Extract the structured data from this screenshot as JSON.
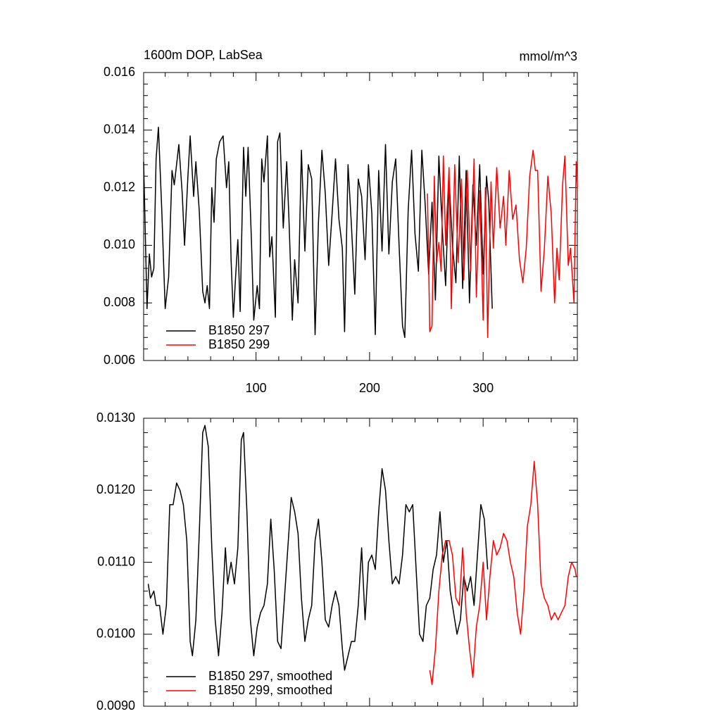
{
  "chart_data": [
    {
      "type": "line",
      "title": "1600m DOP, LabSea",
      "subtitle": "mmol/m^3",
      "legend": "lower left",
      "xlim": [
        1,
        383
      ],
      "xticks": [
        100,
        200,
        300
      ],
      "ylim": [
        0.006,
        0.016
      ],
      "yticks": [
        {
          "value": 0.006,
          "label": "0.006"
        },
        {
          "value": 0.008,
          "label": "0.008"
        },
        {
          "value": 0.01,
          "label": "0.010"
        },
        {
          "value": 0.012,
          "label": "0.012"
        },
        {
          "value": 0.014,
          "label": "0.014"
        },
        {
          "value": 0.016,
          "label": "0.016"
        }
      ],
      "series": [
        {
          "name": "B1850 297",
          "color": "#000000",
          "x": [
            1,
            4,
            6,
            8,
            10,
            12,
            14,
            17,
            20,
            23,
            26,
            28,
            32,
            35,
            37,
            40,
            42,
            45,
            47,
            50,
            53,
            55,
            57,
            59,
            61,
            63,
            65,
            68,
            71,
            74,
            76,
            78,
            80,
            82,
            84,
            86,
            89,
            91,
            93,
            96,
            98,
            101,
            103,
            105,
            107,
            110,
            112,
            114,
            117,
            119,
            121,
            124,
            127,
            129,
            132,
            134,
            137,
            140,
            143,
            146,
            149,
            152,
            155,
            158,
            161,
            164,
            167,
            170,
            173,
            176,
            178,
            181,
            184,
            187,
            190,
            193,
            196,
            199,
            202,
            205,
            208,
            211,
            214,
            217,
            220,
            223,
            226,
            229,
            231,
            234,
            237,
            240,
            243,
            246,
            249,
            252,
            255,
            258,
            261,
            264,
            267,
            270,
            273,
            276,
            279,
            282,
            285,
            288,
            291,
            294,
            297,
            300,
            303,
            305,
            308
          ],
          "values": [
            0.0129,
            0.0078,
            0.0097,
            0.0089,
            0.0092,
            0.013,
            0.0141,
            0.0112,
            0.0078,
            0.0089,
            0.0126,
            0.0121,
            0.0135,
            0.0118,
            0.01,
            0.0124,
            0.0138,
            0.0117,
            0.0129,
            0.0112,
            0.0084,
            0.008,
            0.0086,
            0.0078,
            0.012,
            0.0108,
            0.013,
            0.0136,
            0.0138,
            0.012,
            0.0129,
            0.0095,
            0.0075,
            0.0089,
            0.0102,
            0.0077,
            0.0134,
            0.0117,
            0.0134,
            0.0101,
            0.0074,
            0.0086,
            0.0078,
            0.013,
            0.0122,
            0.0138,
            0.0096,
            0.0103,
            0.0075,
            0.0136,
            0.0139,
            0.0106,
            0.0129,
            0.0109,
            0.0074,
            0.0095,
            0.008,
            0.0133,
            0.0098,
            0.0128,
            0.0123,
            0.0069,
            0.0108,
            0.0133,
            0.0118,
            0.0093,
            0.0111,
            0.013,
            0.0109,
            0.0099,
            0.007,
            0.0128,
            0.0107,
            0.0083,
            0.0123,
            0.0117,
            0.0095,
            0.0128,
            0.0111,
            0.0069,
            0.0126,
            0.0098,
            0.0135,
            0.0097,
            0.0122,
            0.013,
            0.01,
            0.0072,
            0.0068,
            0.0112,
            0.0133,
            0.0104,
            0.0091,
            0.0133,
            0.0114,
            0.009,
            0.0115,
            0.0081,
            0.0131,
            0.0106,
            0.0086,
            0.0123,
            0.01,
            0.0087,
            0.0131,
            0.0085,
            0.0126,
            0.008,
            0.0121,
            0.01,
            0.0128,
            0.009,
            0.0124,
            0.0115,
            0.0078
          ]
        },
        {
          "name": "B1850 299",
          "color": "#ff0000",
          "x": [
            251,
            253,
            255,
            257,
            259,
            261,
            263,
            265,
            267,
            270,
            272,
            275,
            278,
            281,
            283,
            286,
            289,
            292,
            294,
            297,
            300,
            302,
            304,
            307,
            309,
            312,
            315,
            318,
            320,
            323,
            326,
            329,
            332,
            335,
            338,
            341,
            344,
            346,
            348,
            351,
            354,
            357,
            360,
            363,
            365,
            367,
            370,
            372,
            375,
            377,
            380,
            382,
            383
          ],
          "values": [
            0.0118,
            0.007,
            0.0072,
            0.0124,
            0.0094,
            0.0101,
            0.0091,
            0.0131,
            0.01,
            0.0127,
            0.0078,
            0.0128,
            0.0094,
            0.0123,
            0.0088,
            0.0126,
            0.0091,
            0.013,
            0.0082,
            0.0119,
            0.0074,
            0.012,
            0.0068,
            0.0122,
            0.0099,
            0.0127,
            0.0106,
            0.0117,
            0.01,
            0.0126,
            0.0109,
            0.0114,
            0.0095,
            0.0087,
            0.0099,
            0.0124,
            0.0133,
            0.0126,
            0.0126,
            0.0084,
            0.0099,
            0.0124,
            0.0111,
            0.008,
            0.0099,
            0.0088,
            0.0121,
            0.0131,
            0.0093,
            0.0099,
            0.008,
            0.0129,
            0.012
          ]
        }
      ]
    },
    {
      "type": "line",
      "legend": "lower left",
      "xlim": [
        1,
        383
      ],
      "xticks": [
        100,
        200,
        300
      ],
      "ylim": [
        0.009,
        0.013
      ],
      "yticks": [
        {
          "value": 0.009,
          "label": "0.0090"
        },
        {
          "value": 0.01,
          "label": "0.0100"
        },
        {
          "value": 0.011,
          "label": "0.0110"
        },
        {
          "value": 0.012,
          "label": "0.0120"
        },
        {
          "value": 0.013,
          "label": "0.0130"
        }
      ],
      "series": [
        {
          "name": "B1850 297, smoothed",
          "color": "#000000",
          "x": [
            5,
            7,
            10,
            12,
            15,
            18,
            21,
            24,
            27,
            30,
            33,
            36,
            39,
            42,
            44,
            47,
            50,
            53,
            55,
            58,
            61,
            64,
            67,
            70,
            73,
            75,
            78,
            81,
            84,
            87,
            89,
            92,
            95,
            98,
            101,
            104,
            107,
            110,
            113,
            116,
            119,
            122,
            125,
            128,
            131,
            134,
            137,
            140,
            143,
            146,
            149,
            152,
            155,
            158,
            161,
            164,
            167,
            170,
            173,
            176,
            178,
            181,
            184,
            187,
            190,
            193,
            196,
            199,
            202,
            205,
            208,
            211,
            214,
            217,
            220,
            223,
            226,
            229,
            232,
            235,
            238,
            241,
            244,
            247,
            250,
            253,
            256,
            259,
            262,
            265,
            268,
            271,
            274,
            277,
            280,
            283,
            286,
            289,
            292,
            295,
            298,
            301,
            304
          ],
          "values": [
            0.0107,
            0.0105,
            0.0106,
            0.0104,
            0.0104,
            0.01,
            0.0104,
            0.0118,
            0.0118,
            0.0121,
            0.012,
            0.0118,
            0.0113,
            0.0099,
            0.0097,
            0.0102,
            0.0114,
            0.0128,
            0.0129,
            0.0126,
            0.0112,
            0.0102,
            0.0097,
            0.0103,
            0.0112,
            0.0107,
            0.011,
            0.0107,
            0.0112,
            0.0127,
            0.0128,
            0.0117,
            0.0102,
            0.0097,
            0.0101,
            0.0103,
            0.0104,
            0.0107,
            0.0116,
            0.0109,
            0.0099,
            0.0098,
            0.0105,
            0.0112,
            0.0119,
            0.0117,
            0.0114,
            0.0105,
            0.0099,
            0.0102,
            0.0104,
            0.0113,
            0.0116,
            0.011,
            0.0102,
            0.0101,
            0.0104,
            0.0106,
            0.0104,
            0.0098,
            0.0095,
            0.0097,
            0.0099,
            0.0099,
            0.0104,
            0.0112,
            0.0102,
            0.011,
            0.0111,
            0.0109,
            0.0117,
            0.0123,
            0.012,
            0.0113,
            0.0107,
            0.0108,
            0.0107,
            0.0111,
            0.0118,
            0.0117,
            0.0118,
            0.0109,
            0.01,
            0.0099,
            0.0104,
            0.0105,
            0.0109,
            0.0111,
            0.0117,
            0.011,
            0.0113,
            0.0106,
            0.0103,
            0.01,
            0.0102,
            0.0108,
            0.0106,
            0.0108,
            0.0104,
            0.0111,
            0.0118,
            0.0116,
            0.0109
          ]
        },
        {
          "name": "B1850 299, smoothed",
          "color": "#ff0000",
          "x": [
            253,
            255,
            258,
            261,
            264,
            267,
            270,
            273,
            276,
            279,
            282,
            285,
            288,
            291,
            294,
            297,
            300,
            303,
            306,
            309,
            312,
            315,
            318,
            321,
            324,
            327,
            330,
            333,
            336,
            339,
            342,
            345,
            348,
            351,
            354,
            357,
            360,
            363,
            366,
            369,
            372,
            375,
            378,
            381,
            382
          ],
          "values": [
            0.0095,
            0.0093,
            0.0098,
            0.0106,
            0.0111,
            0.0113,
            0.0113,
            0.0111,
            0.0105,
            0.0104,
            0.0112,
            0.0103,
            0.0098,
            0.0094,
            0.0101,
            0.0104,
            0.011,
            0.0102,
            0.0108,
            0.0113,
            0.0111,
            0.0112,
            0.0114,
            0.0113,
            0.011,
            0.0108,
            0.0103,
            0.01,
            0.0106,
            0.0115,
            0.0118,
            0.0124,
            0.0118,
            0.0107,
            0.0105,
            0.0104,
            0.0102,
            0.0103,
            0.0102,
            0.0103,
            0.0104,
            0.0108,
            0.011,
            0.0109,
            0.0108
          ]
        }
      ]
    }
  ]
}
